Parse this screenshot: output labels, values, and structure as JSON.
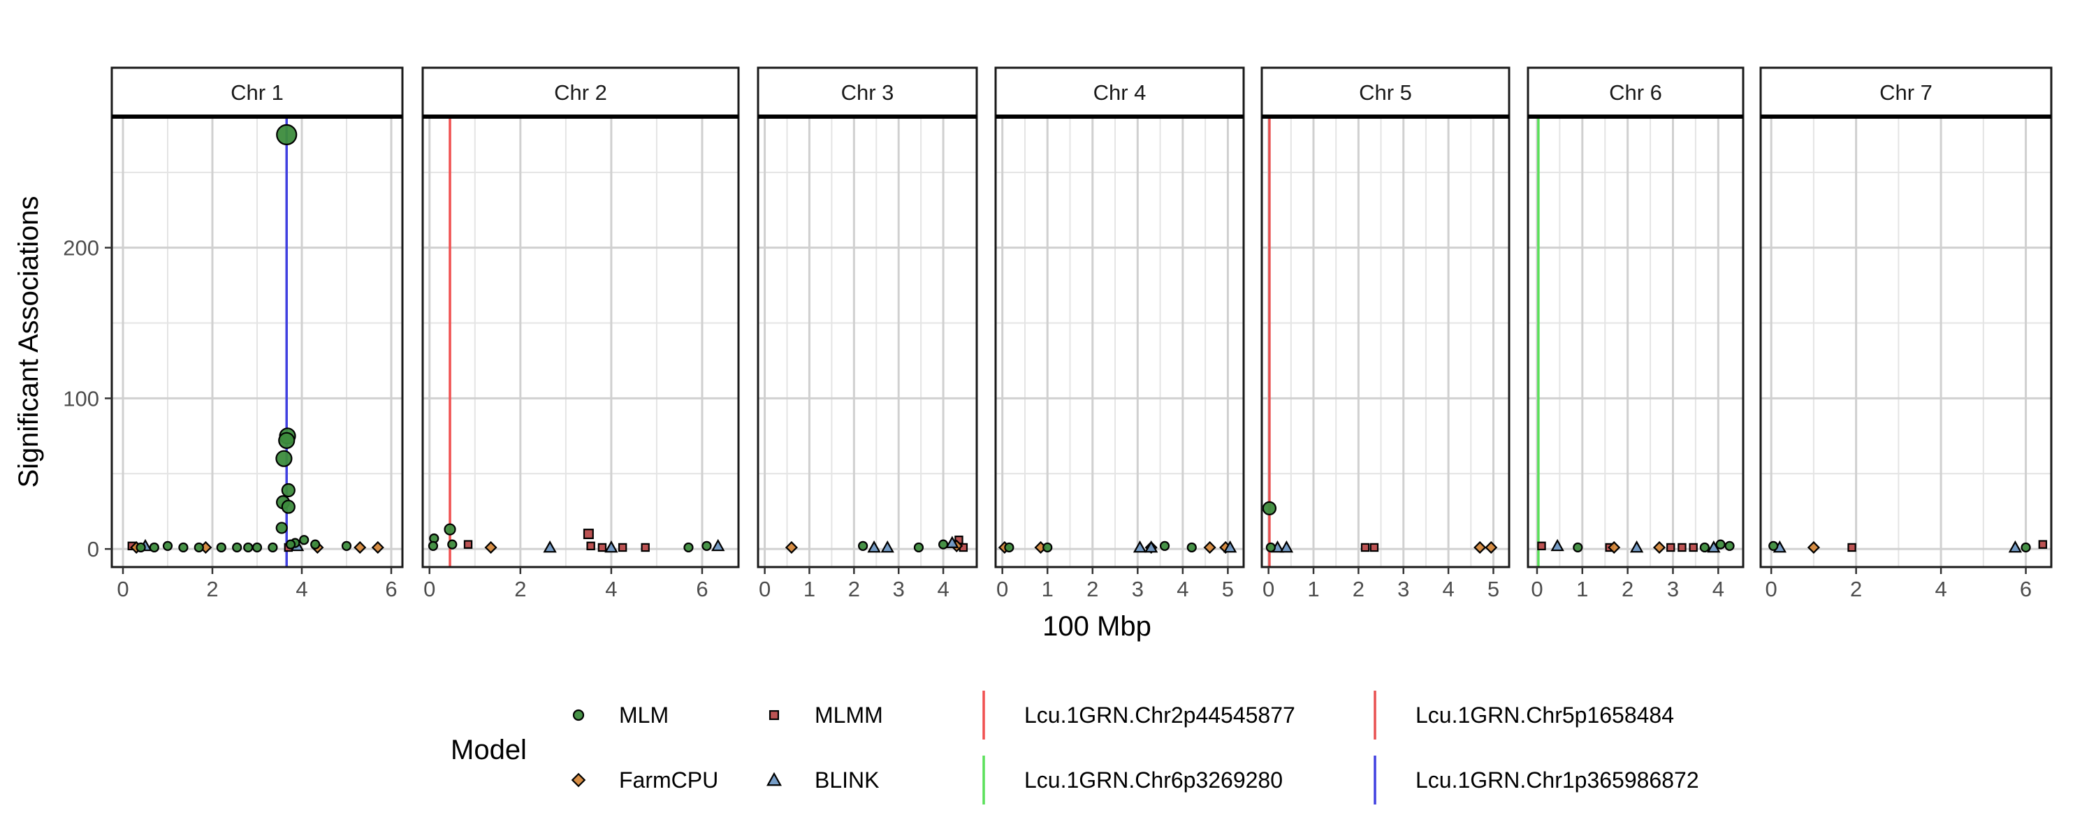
{
  "chart_data": {
    "type": "scatter",
    "facet_by": "chromosome",
    "xlabel": "100 Mbp",
    "ylabel": "Significant Associations",
    "ylim": [
      -12,
      287
    ],
    "y_ticks": [
      0,
      100,
      200
    ],
    "grid": true,
    "legend_position": "bottom",
    "legend_title": "Model",
    "panels": [
      {
        "label": "Chr 1",
        "xlim": [
          -0.25,
          6.25
        ],
        "x_ticks": [
          0,
          2,
          4,
          6
        ],
        "vlines": [
          {
            "x": 3.66,
            "marker": "Lcu.1GRN.Chr1p365986872"
          }
        ]
      },
      {
        "label": "Chr 2",
        "xlim": [
          -0.15,
          6.8
        ],
        "x_ticks": [
          0,
          2,
          4,
          6
        ],
        "vlines": [
          {
            "x": 0.45,
            "marker": "Lcu.1GRN.Chr2p44545877"
          }
        ]
      },
      {
        "label": "Chr 3",
        "xlim": [
          -0.15,
          4.75
        ],
        "x_ticks": [
          0,
          1,
          2,
          3,
          4
        ],
        "vlines": []
      },
      {
        "label": "Chr 4",
        "xlim": [
          -0.15,
          5.35
        ],
        "x_ticks": [
          0,
          1,
          2,
          3,
          4,
          5
        ],
        "vlines": []
      },
      {
        "label": "Chr 5",
        "xlim": [
          -0.15,
          5.35
        ],
        "x_ticks": [
          0,
          1,
          2,
          3,
          4,
          5
        ],
        "vlines": [
          {
            "x": 0.02,
            "marker": "Lcu.1GRN.Chr5p1658484"
          }
        ]
      },
      {
        "label": "Chr 6",
        "xlim": [
          -0.2,
          4.55
        ],
        "x_ticks": [
          0,
          1,
          2,
          3,
          4
        ],
        "vlines": [
          {
            "x": 0.03,
            "marker": "Lcu.1GRN.Chr6p3269280"
          }
        ]
      },
      {
        "label": "Chr 7",
        "xlim": [
          -0.25,
          6.6
        ],
        "x_ticks": [
          0,
          2,
          4,
          6
        ],
        "vlines": []
      }
    ],
    "series": [
      {
        "name": "MLM",
        "shape": "circle",
        "color": "#3d8c3d",
        "points": [
          {
            "panel": 1,
            "x": 3.66,
            "y": 275
          },
          {
            "panel": 1,
            "x": 3.68,
            "y": 75
          },
          {
            "panel": 1,
            "x": 3.66,
            "y": 72
          },
          {
            "panel": 1,
            "x": 3.6,
            "y": 60
          },
          {
            "panel": 1,
            "x": 3.7,
            "y": 39
          },
          {
            "panel": 1,
            "x": 3.58,
            "y": 31
          },
          {
            "panel": 1,
            "x": 3.7,
            "y": 28
          },
          {
            "panel": 1,
            "x": 3.55,
            "y": 14
          },
          {
            "panel": 1,
            "x": 3.85,
            "y": 4
          },
          {
            "panel": 1,
            "x": 3.75,
            "y": 3
          },
          {
            "panel": 1,
            "x": 4.05,
            "y": 6
          },
          {
            "panel": 1,
            "x": 4.3,
            "y": 3
          },
          {
            "panel": 1,
            "x": 3.35,
            "y": 1
          },
          {
            "panel": 1,
            "x": 0.4,
            "y": 1
          },
          {
            "panel": 1,
            "x": 0.7,
            "y": 1
          },
          {
            "panel": 1,
            "x": 1.0,
            "y": 2
          },
          {
            "panel": 1,
            "x": 1.35,
            "y": 1
          },
          {
            "panel": 1,
            "x": 1.7,
            "y": 1
          },
          {
            "panel": 1,
            "x": 2.2,
            "y": 1
          },
          {
            "panel": 1,
            "x": 2.55,
            "y": 1
          },
          {
            "panel": 1,
            "x": 2.8,
            "y": 1
          },
          {
            "panel": 1,
            "x": 3.0,
            "y": 1
          },
          {
            "panel": 1,
            "x": 5.0,
            "y": 2
          },
          {
            "panel": 2,
            "x": 0.1,
            "y": 7
          },
          {
            "panel": 2,
            "x": 0.45,
            "y": 13
          },
          {
            "panel": 2,
            "x": 0.5,
            "y": 3
          },
          {
            "panel": 2,
            "x": 0.08,
            "y": 2
          },
          {
            "panel": 2,
            "x": 5.7,
            "y": 1
          },
          {
            "panel": 2,
            "x": 6.1,
            "y": 2
          },
          {
            "panel": 3,
            "x": 2.2,
            "y": 2
          },
          {
            "panel": 3,
            "x": 3.45,
            "y": 1
          },
          {
            "panel": 3,
            "x": 4.0,
            "y": 3
          },
          {
            "panel": 4,
            "x": 0.15,
            "y": 1
          },
          {
            "panel": 4,
            "x": 1.0,
            "y": 1
          },
          {
            "panel": 4,
            "x": 3.6,
            "y": 2
          },
          {
            "panel": 4,
            "x": 4.2,
            "y": 1
          },
          {
            "panel": 5,
            "x": 0.02,
            "y": 27
          },
          {
            "panel": 5,
            "x": 0.05,
            "y": 1
          },
          {
            "panel": 6,
            "x": 0.9,
            "y": 1
          },
          {
            "panel": 6,
            "x": 3.7,
            "y": 1
          },
          {
            "panel": 6,
            "x": 4.05,
            "y": 3
          },
          {
            "panel": 6,
            "x": 4.25,
            "y": 2
          },
          {
            "panel": 7,
            "x": 0.05,
            "y": 2
          },
          {
            "panel": 7,
            "x": 6.0,
            "y": 1
          }
        ]
      },
      {
        "name": "MLMM",
        "shape": "square",
        "color": "#b84a4a",
        "points": [
          {
            "panel": 1,
            "x": 0.2,
            "y": 2
          },
          {
            "panel": 1,
            "x": 3.7,
            "y": 1
          },
          {
            "panel": 2,
            "x": 0.85,
            "y": 3
          },
          {
            "panel": 2,
            "x": 3.5,
            "y": 10
          },
          {
            "panel": 2,
            "x": 3.55,
            "y": 2
          },
          {
            "panel": 2,
            "x": 3.8,
            "y": 1
          },
          {
            "panel": 2,
            "x": 4.25,
            "y": 1
          },
          {
            "panel": 2,
            "x": 4.75,
            "y": 1
          },
          {
            "panel": 3,
            "x": 4.35,
            "y": 6
          },
          {
            "panel": 3,
            "x": 4.45,
            "y": 1
          },
          {
            "panel": 5,
            "x": 2.15,
            "y": 1
          },
          {
            "panel": 5,
            "x": 2.35,
            "y": 1
          },
          {
            "panel": 6,
            "x": 0.1,
            "y": 2
          },
          {
            "panel": 6,
            "x": 1.6,
            "y": 1
          },
          {
            "panel": 6,
            "x": 2.95,
            "y": 1
          },
          {
            "panel": 6,
            "x": 3.2,
            "y": 1
          },
          {
            "panel": 6,
            "x": 3.45,
            "y": 1
          },
          {
            "panel": 7,
            "x": 1.9,
            "y": 1
          },
          {
            "panel": 7,
            "x": 6.4,
            "y": 3
          }
        ]
      },
      {
        "name": "FarmCPU",
        "shape": "diamond",
        "color": "#d4873a",
        "points": [
          {
            "panel": 1,
            "x": 0.3,
            "y": 1
          },
          {
            "panel": 1,
            "x": 1.85,
            "y": 1
          },
          {
            "panel": 1,
            "x": 4.35,
            "y": 1
          },
          {
            "panel": 1,
            "x": 5.3,
            "y": 1
          },
          {
            "panel": 1,
            "x": 5.7,
            "y": 1
          },
          {
            "panel": 2,
            "x": 1.35,
            "y": 1
          },
          {
            "panel": 3,
            "x": 0.6,
            "y": 1
          },
          {
            "panel": 3,
            "x": 4.3,
            "y": 2
          },
          {
            "panel": 4,
            "x": 0.05,
            "y": 1
          },
          {
            "panel": 4,
            "x": 0.85,
            "y": 1
          },
          {
            "panel": 4,
            "x": 3.3,
            "y": 1
          },
          {
            "panel": 4,
            "x": 4.6,
            "y": 1
          },
          {
            "panel": 4,
            "x": 4.95,
            "y": 1
          },
          {
            "panel": 5,
            "x": 4.7,
            "y": 1
          },
          {
            "panel": 5,
            "x": 4.95,
            "y": 1
          },
          {
            "panel": 6,
            "x": 1.7,
            "y": 1
          },
          {
            "panel": 6,
            "x": 2.7,
            "y": 1
          },
          {
            "panel": 7,
            "x": 1.0,
            "y": 1
          }
        ]
      },
      {
        "name": "BLINK",
        "shape": "triangle",
        "color": "#6f98c4",
        "points": [
          {
            "panel": 1,
            "x": 0.5,
            "y": 2
          },
          {
            "panel": 1,
            "x": 3.9,
            "y": 2
          },
          {
            "panel": 2,
            "x": 2.65,
            "y": 1
          },
          {
            "panel": 2,
            "x": 4.0,
            "y": 1
          },
          {
            "panel": 2,
            "x": 6.35,
            "y": 2
          },
          {
            "panel": 3,
            "x": 2.45,
            "y": 1
          },
          {
            "panel": 3,
            "x": 2.75,
            "y": 1
          },
          {
            "panel": 3,
            "x": 4.2,
            "y": 4
          },
          {
            "panel": 4,
            "x": 3.05,
            "y": 1
          },
          {
            "panel": 4,
            "x": 3.3,
            "y": 1
          },
          {
            "panel": 4,
            "x": 5.05,
            "y": 1
          },
          {
            "panel": 5,
            "x": 0.2,
            "y": 1
          },
          {
            "panel": 5,
            "x": 0.4,
            "y": 1
          },
          {
            "panel": 6,
            "x": 0.45,
            "y": 2
          },
          {
            "panel": 6,
            "x": 2.2,
            "y": 1
          },
          {
            "panel": 6,
            "x": 3.9,
            "y": 1
          },
          {
            "panel": 7,
            "x": 0.2,
            "y": 1
          },
          {
            "panel": 7,
            "x": 5.75,
            "y": 1
          }
        ]
      }
    ],
    "vline_legend": [
      {
        "name": "Lcu.1GRN.Chr2p44545877",
        "color": "#f05050"
      },
      {
        "name": "Lcu.1GRN.Chr5p1658484",
        "color": "#e85050"
      },
      {
        "name": "Lcu.1GRN.Chr6p3269280",
        "color": "#5ae05a"
      },
      {
        "name": "Lcu.1GRN.Chr1p365986872",
        "color": "#4040e0"
      }
    ]
  }
}
